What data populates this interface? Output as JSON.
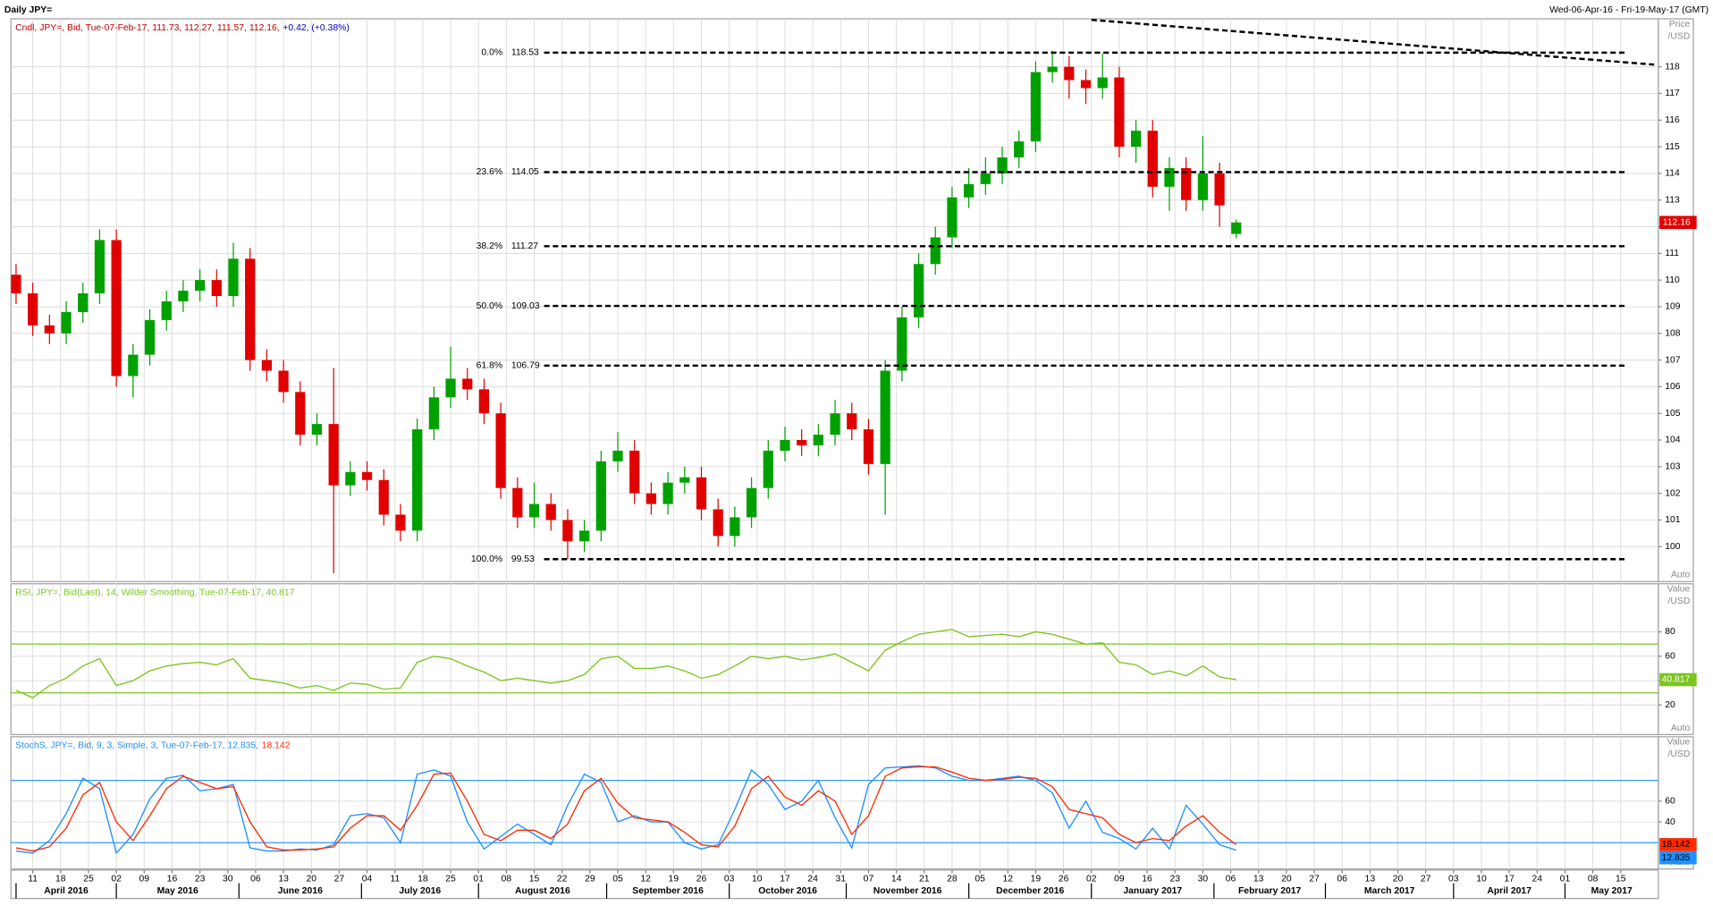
{
  "header": {
    "title": "Daily JPY=",
    "range": "Wed-06-Apr-16 - Fri-19-May-17 (GMT)"
  },
  "chart_data": [
    {
      "type": "candlestick",
      "legend": "Cndl, JPY=, Bid, Tue-07-Feb-17, 111.73, 112.27, 111.57, 112.16,",
      "change": "+0.42, (+0.38%)",
      "axis_title": [
        "Price",
        "/USD"
      ],
      "auto_label": "Auto",
      "up_color": "#00a000",
      "down_color": "#e00000",
      "xlim": [
        -0.92,
        294.76
      ],
      "ylim": [
        98.69,
        119.8
      ],
      "yticks": [
        100,
        101,
        102,
        103,
        104,
        105,
        106,
        107,
        108,
        109,
        110,
        111,
        112,
        113,
        114,
        115,
        116,
        117,
        118
      ],
      "grid": true,
      "x": [
        0,
        3,
        6,
        9,
        12,
        15,
        18,
        21,
        24,
        27,
        30,
        33,
        36,
        39,
        42,
        45,
        48,
        51,
        54,
        57,
        60,
        63,
        66,
        69,
        72,
        75,
        78,
        81,
        84,
        87,
        90,
        93,
        96,
        99,
        102,
        105,
        108,
        111,
        114,
        117,
        120,
        123,
        126,
        129,
        132,
        135,
        138,
        141,
        144,
        147,
        150,
        153,
        156,
        159,
        162,
        165,
        168,
        171,
        174,
        177,
        180,
        183,
        186,
        189,
        192,
        195,
        198,
        201,
        204,
        207,
        210,
        213,
        216,
        219
      ],
      "open": [
        110.2,
        109.5,
        108.3,
        108.0,
        108.8,
        109.5,
        111.5,
        106.4,
        107.2,
        108.5,
        109.2,
        109.6,
        110.0,
        109.4,
        110.8,
        107.0,
        106.6,
        105.8,
        104.2,
        104.6,
        102.3,
        102.8,
        102.5,
        101.2,
        100.6,
        104.4,
        105.6,
        106.3,
        105.9,
        105.0,
        102.2,
        101.1,
        101.6,
        101.0,
        100.2,
        100.6,
        103.2,
        103.6,
        102.0,
        101.6,
        102.4,
        102.6,
        101.4,
        100.4,
        101.1,
        102.2,
        103.6,
        104.0,
        103.8,
        104.2,
        105.0,
        104.4,
        103.1,
        106.6,
        108.6,
        110.6,
        111.6,
        113.1,
        113.6,
        114.0,
        114.6,
        115.2,
        117.8,
        118.0,
        117.5,
        117.2,
        117.6,
        115.0,
        115.6,
        113.5,
        114.2,
        113.0,
        114.0,
        111.73
      ],
      "high": [
        110.6,
        109.9,
        108.7,
        109.2,
        109.9,
        111.9,
        111.9,
        107.6,
        108.9,
        109.6,
        110.0,
        110.4,
        110.4,
        111.4,
        111.2,
        107.4,
        107.0,
        106.2,
        105.0,
        106.7,
        103.2,
        103.2,
        102.9,
        101.6,
        104.8,
        106.0,
        107.5,
        106.7,
        106.3,
        105.4,
        102.6,
        102.4,
        102.0,
        101.4,
        101.0,
        103.6,
        104.3,
        104.0,
        102.4,
        102.8,
        103.0,
        103.0,
        101.8,
        101.5,
        102.6,
        104.0,
        104.5,
        104.4,
        104.6,
        105.5,
        105.4,
        104.8,
        107.0,
        109.0,
        111.0,
        112.0,
        113.5,
        114.2,
        114.6,
        115.0,
        115.6,
        118.2,
        118.6,
        118.4,
        117.9,
        118.5,
        118.0,
        116.0,
        116.0,
        114.6,
        114.6,
        115.4,
        114.4,
        112.27
      ],
      "low": [
        109.1,
        107.9,
        107.6,
        107.6,
        108.4,
        109.1,
        106.0,
        105.6,
        106.8,
        108.1,
        108.8,
        109.2,
        109.0,
        109.0,
        106.6,
        106.2,
        105.4,
        103.8,
        103.8,
        99.0,
        101.9,
        102.1,
        100.8,
        100.2,
        100.2,
        104.0,
        105.2,
        105.5,
        104.6,
        101.8,
        100.7,
        100.7,
        100.6,
        99.53,
        99.8,
        100.2,
        102.8,
        101.6,
        101.2,
        101.2,
        102.0,
        101.0,
        100.0,
        100.0,
        100.7,
        101.8,
        103.2,
        103.4,
        103.4,
        103.8,
        104.0,
        102.7,
        101.2,
        106.2,
        108.2,
        110.2,
        111.2,
        112.7,
        113.2,
        113.6,
        114.2,
        114.8,
        117.4,
        116.8,
        116.6,
        116.8,
        114.6,
        114.4,
        113.1,
        112.6,
        112.6,
        112.6,
        112.0,
        111.57
      ],
      "close": [
        109.5,
        108.3,
        108.0,
        108.8,
        109.5,
        111.5,
        106.4,
        107.2,
        108.5,
        109.2,
        109.6,
        110.0,
        109.4,
        110.8,
        107.0,
        106.6,
        105.8,
        104.2,
        104.6,
        102.3,
        102.8,
        102.5,
        101.2,
        100.6,
        104.4,
        105.6,
        106.3,
        105.9,
        105.0,
        102.2,
        101.1,
        101.6,
        101.0,
        100.2,
        100.6,
        103.2,
        103.6,
        102.0,
        101.6,
        102.4,
        102.6,
        101.4,
        100.4,
        101.1,
        102.2,
        103.6,
        104.0,
        103.8,
        104.2,
        105.0,
        104.4,
        103.1,
        106.6,
        108.6,
        110.6,
        111.6,
        113.1,
        113.6,
        114.0,
        114.6,
        115.2,
        117.8,
        118.0,
        117.5,
        117.2,
        117.6,
        115.0,
        115.6,
        113.5,
        114.2,
        113.0,
        114.0,
        112.8,
        112.16
      ],
      "fib_levels": [
        {
          "label": "0.0%",
          "value": 118.53
        },
        {
          "label": "23.6%",
          "value": 114.05
        },
        {
          "label": "38.2%",
          "value": 111.27
        },
        {
          "label": "50.0%",
          "value": 109.03
        },
        {
          "label": "61.8%",
          "value": 106.79
        },
        {
          "label": "100.0%",
          "value": 99.53
        }
      ],
      "trendline": {
        "x": [
          193,
          294
        ],
        "y": [
          119.76,
          118.08
        ]
      }
    },
    {
      "type": "line",
      "legend": "RSI, JPY=, Bid(Last), 14, Wilder Smoothing, Tue-07-Feb-17, 40.817",
      "axis_title": [
        "Value",
        "/USD"
      ],
      "auto_label": "Auto",
      "xlim": [
        -0.92,
        294.76
      ],
      "ylim": [
        -4.2,
        119.4
      ],
      "yticks": [
        20,
        40,
        60,
        80
      ],
      "levels": [
        30,
        70
      ],
      "level_color": "#7cc520",
      "grid": true,
      "x": [
        0,
        3,
        6,
        9,
        12,
        15,
        18,
        21,
        24,
        27,
        30,
        33,
        36,
        39,
        42,
        45,
        48,
        51,
        54,
        57,
        60,
        63,
        66,
        69,
        72,
        75,
        78,
        81,
        84,
        87,
        90,
        93,
        96,
        99,
        102,
        105,
        108,
        111,
        114,
        117,
        120,
        123,
        126,
        129,
        132,
        135,
        138,
        141,
        144,
        147,
        150,
        153,
        156,
        159,
        162,
        165,
        168,
        171,
        174,
        177,
        180,
        183,
        186,
        189,
        192,
        195,
        198,
        201,
        204,
        207,
        210,
        213,
        216,
        219
      ],
      "series": [
        {
          "name": "RSI",
          "color": "#7cc520",
          "values": [
            32,
            26,
            36,
            42,
            52,
            58,
            36,
            40,
            48,
            52,
            54,
            55,
            53,
            58,
            42,
            40,
            38,
            34,
            36,
            32,
            38,
            37,
            33,
            34,
            55,
            60,
            58,
            52,
            47,
            40,
            42,
            40,
            38,
            40,
            45,
            58,
            60,
            50,
            50,
            52,
            48,
            42,
            45,
            52,
            60,
            58,
            60,
            57,
            59,
            62,
            55,
            48,
            65,
            72,
            78,
            80,
            82,
            76,
            77,
            78,
            76,
            80,
            78,
            74,
            70,
            71,
            55,
            53,
            45,
            48,
            44,
            52,
            43,
            40.817
          ]
        }
      ]
    },
    {
      "type": "line",
      "legend": "StochS, JPY=, Bid, 9, 3, Simple, 3, Tue-07-Feb-17, 12.835,",
      "legend2": "18.142",
      "axis_title": [
        "Value",
        "/USD"
      ],
      "auto_label": "Auto",
      "xlim": [
        -0.92,
        294.76
      ],
      "ylim": [
        -5.3,
        122
      ],
      "yticks": [
        40,
        60
      ],
      "levels": [
        20,
        80
      ],
      "level_color": "#3399ff",
      "grid": true,
      "x": [
        0,
        3,
        6,
        9,
        12,
        15,
        18,
        21,
        24,
        27,
        30,
        33,
        36,
        39,
        42,
        45,
        48,
        51,
        54,
        57,
        60,
        63,
        66,
        69,
        72,
        75,
        78,
        81,
        84,
        87,
        90,
        93,
        96,
        99,
        102,
        105,
        108,
        111,
        114,
        117,
        120,
        123,
        126,
        129,
        132,
        135,
        138,
        141,
        144,
        147,
        150,
        153,
        156,
        159,
        162,
        165,
        168,
        171,
        174,
        177,
        180,
        183,
        186,
        189,
        192,
        195,
        198,
        201,
        204,
        207,
        210,
        213,
        216,
        219
      ],
      "series": [
        {
          "name": "%K",
          "color": "#1e90ff",
          "values": [
            12,
            10,
            22,
            48,
            82,
            72,
            10,
            28,
            62,
            82,
            85,
            70,
            72,
            76,
            15,
            12,
            12,
            14,
            13,
            18,
            46,
            48,
            44,
            20,
            86,
            90,
            84,
            40,
            14,
            26,
            38,
            28,
            18,
            56,
            86,
            78,
            40,
            46,
            40,
            40,
            20,
            14,
            18,
            52,
            90,
            76,
            52,
            60,
            80,
            44,
            15,
            76,
            92,
            93,
            94,
            92,
            84,
            80,
            80,
            82,
            84,
            80,
            68,
            34,
            60,
            30,
            24,
            14,
            34,
            14,
            56,
            38,
            18,
            12.835
          ]
        },
        {
          "name": "%D",
          "color": "#ff2a00",
          "values": [
            15,
            12,
            16,
            34,
            66,
            78,
            40,
            22,
            46,
            72,
            84,
            78,
            72,
            74,
            40,
            16,
            13,
            13,
            14,
            16,
            34,
            46,
            46,
            32,
            56,
            86,
            87,
            60,
            28,
            22,
            32,
            32,
            24,
            38,
            70,
            82,
            58,
            44,
            42,
            40,
            30,
            18,
            16,
            36,
            72,
            84,
            64,
            56,
            70,
            60,
            28,
            46,
            84,
            92,
            93,
            93,
            88,
            82,
            80,
            81,
            83,
            82,
            74,
            52,
            48,
            44,
            28,
            20,
            24,
            22,
            36,
            46,
            30,
            18.142
          ]
        }
      ],
      "xticks": [
        {
          "value": 3,
          "label": "11"
        },
        {
          "value": 8,
          "label": "18"
        },
        {
          "value": 13,
          "label": "25"
        },
        {
          "value": 18,
          "label": "02"
        },
        {
          "value": 23,
          "label": "09"
        },
        {
          "value": 28,
          "label": "16"
        },
        {
          "value": 33,
          "label": "23"
        },
        {
          "value": 38,
          "label": "30"
        },
        {
          "value": 43,
          "label": "06"
        },
        {
          "value": 48,
          "label": "13"
        },
        {
          "value": 53,
          "label": "20"
        },
        {
          "value": 58,
          "label": "27"
        },
        {
          "value": 63,
          "label": "04"
        },
        {
          "value": 68,
          "label": "11"
        },
        {
          "value": 73,
          "label": "18"
        },
        {
          "value": 78,
          "label": "25"
        },
        {
          "value": 83,
          "label": "01"
        },
        {
          "value": 88,
          "label": "08"
        },
        {
          "value": 93,
          "label": "15"
        },
        {
          "value": 98,
          "label": "22"
        },
        {
          "value": 103,
          "label": "29"
        },
        {
          "value": 108,
          "label": "05"
        },
        {
          "value": 113,
          "label": "12"
        },
        {
          "value": 118,
          "label": "19"
        },
        {
          "value": 123,
          "label": "26"
        },
        {
          "value": 128,
          "label": "03"
        },
        {
          "value": 133,
          "label": "10"
        },
        {
          "value": 138,
          "label": "17"
        },
        {
          "value": 143,
          "label": "24"
        },
        {
          "value": 148,
          "label": "31"
        },
        {
          "value": 153,
          "label": "07"
        },
        {
          "value": 158,
          "label": "14"
        },
        {
          "value": 163,
          "label": "21"
        },
        {
          "value": 168,
          "label": "28"
        },
        {
          "value": 173,
          "label": "05"
        },
        {
          "value": 178,
          "label": "12"
        },
        {
          "value": 183,
          "label": "19"
        },
        {
          "value": 188,
          "label": "26"
        },
        {
          "value": 193,
          "label": "02"
        },
        {
          "value": 198,
          "label": "09"
        },
        {
          "value": 203,
          "label": "16"
        },
        {
          "value": 208,
          "label": "23"
        },
        {
          "value": 213,
          "label": "30"
        },
        {
          "value": 218,
          "label": "06"
        },
        {
          "value": 223,
          "label": "13"
        },
        {
          "value": 228,
          "label": "20"
        },
        {
          "value": 233,
          "label": "27"
        },
        {
          "value": 238,
          "label": "06"
        },
        {
          "value": 243,
          "label": "13"
        },
        {
          "value": 248,
          "label": "20"
        },
        {
          "value": 253,
          "label": "27"
        },
        {
          "value": 258,
          "label": "03"
        },
        {
          "value": 263,
          "label": "10"
        },
        {
          "value": 268,
          "label": "17"
        },
        {
          "value": 273,
          "label": "24"
        },
        {
          "value": 278,
          "label": "01"
        },
        {
          "value": 283,
          "label": "08"
        },
        {
          "value": 288,
          "label": "15"
        }
      ],
      "months": [
        {
          "value": 0,
          "label": "April 2016"
        },
        {
          "value": 18,
          "label": "May 2016"
        },
        {
          "value": 40,
          "label": "June 2016"
        },
        {
          "value": 62,
          "label": "July 2016"
        },
        {
          "value": 83,
          "label": "August 2016"
        },
        {
          "value": 106,
          "label": "September 2016"
        },
        {
          "value": 128,
          "label": "October 2016"
        },
        {
          "value": 149,
          "label": "November 2016"
        },
        {
          "value": 171,
          "label": "December 2016"
        },
        {
          "value": 193,
          "label": "January 2017"
        },
        {
          "value": 215,
          "label": "February 2017"
        },
        {
          "value": 235,
          "label": "March 2017"
        },
        {
          "value": 258,
          "label": "April 2017"
        },
        {
          "value": 278,
          "label": "May 2017"
        }
      ]
    }
  ]
}
